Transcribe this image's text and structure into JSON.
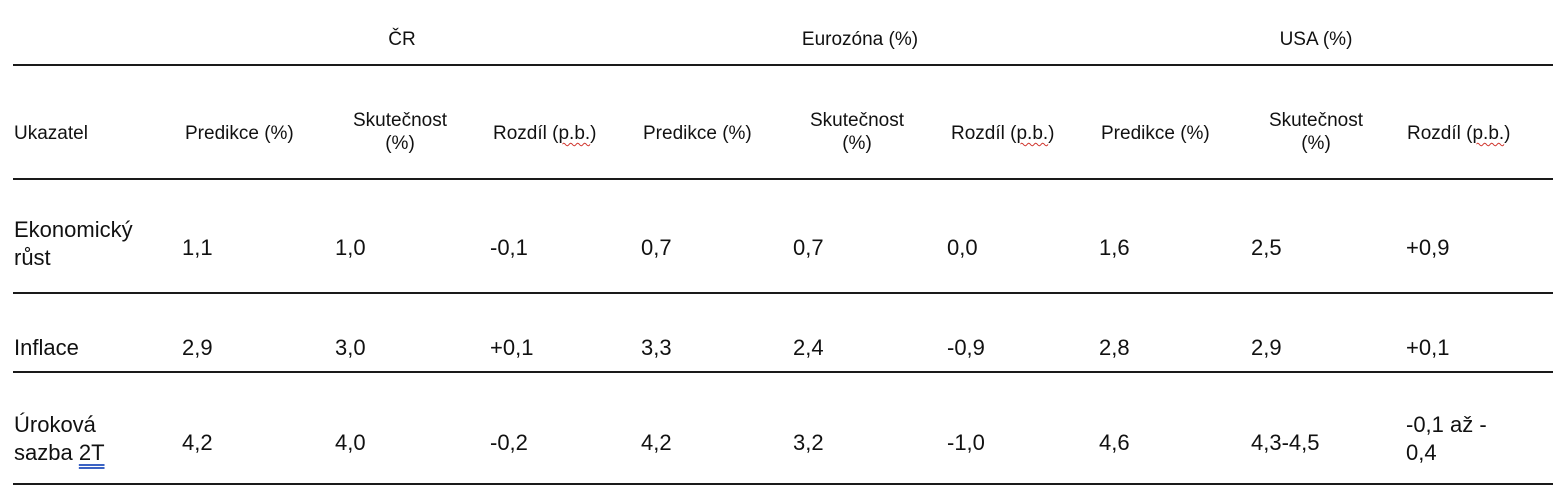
{
  "groups": {
    "cr": "ČR",
    "ez": "Eurozóna (%)",
    "usa": "USA (%)"
  },
  "headers": {
    "indicator": "Ukazatel",
    "pred": "Predikce (%)",
    "actual_line1": "Skutečnost",
    "actual_line2": "(%)",
    "diff_prefix": "Rozdíl (",
    "diff_unit": "p.b.",
    "diff_suffix": ")"
  },
  "rows": [
    {
      "label_line1": "Ekonomický",
      "label_line2": "růst",
      "cr_pred": "1,1",
      "cr_act": "1,0",
      "cr_diff": "-0,1",
      "ez_pred": "0,7",
      "ez_act": "0,7",
      "ez_diff": "0,0",
      "us_pred": "1,6",
      "us_act": "2,5",
      "us_diff": "+0,9"
    },
    {
      "label_line1": "Inflace",
      "cr_pred": "2,9",
      "cr_act": "3,0",
      "cr_diff": "+0,1",
      "ez_pred": "3,3",
      "ez_act": "2,4",
      "ez_diff": "-0,9",
      "us_pred": "2,8",
      "us_act": "2,9",
      "us_diff": "+0,1"
    },
    {
      "label_line1": "Úroková",
      "label_line2_text": "sazba ",
      "label_line2_ul": "2T",
      "cr_pred": "4,2",
      "cr_act": "4,0",
      "cr_diff": "-0,2",
      "ez_pred": "4,2",
      "ez_act": "3,2",
      "ez_diff": "-1,0",
      "us_pred": "4,6",
      "us_act": "4,3-4,5",
      "us_diff_line1": "-0,1 až -",
      "us_diff_line2": "0,4"
    }
  ]
}
